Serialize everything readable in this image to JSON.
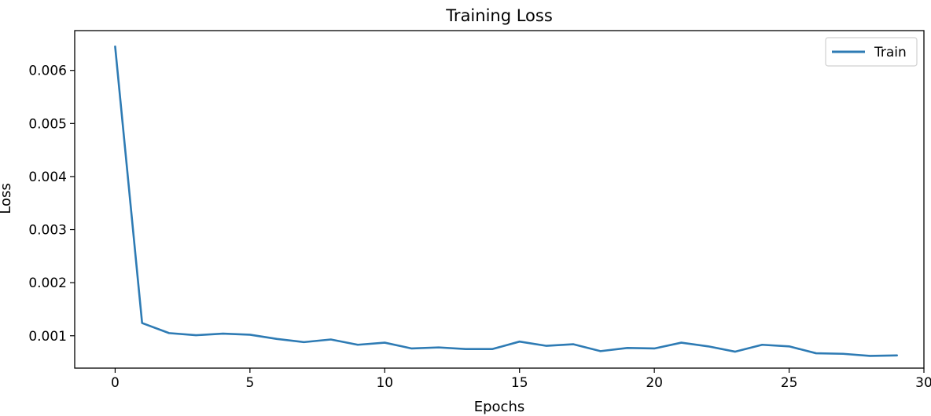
{
  "chart_data": {
    "type": "line",
    "title": "Training Loss",
    "xlabel": "Epochs",
    "ylabel": "Loss",
    "xlim": [
      -1.5,
      30
    ],
    "ylim": [
      0.00039,
      0.00675
    ],
    "xticks": [
      0,
      5,
      10,
      15,
      20,
      25,
      30
    ],
    "xtick_labels": [
      "0",
      "5",
      "10",
      "15",
      "20",
      "25",
      "30"
    ],
    "yticks": [
      0.001,
      0.002,
      0.003,
      0.004,
      0.005,
      0.006
    ],
    "ytick_labels": [
      "0.001",
      "0.002",
      "0.003",
      "0.004",
      "0.005",
      "0.006"
    ],
    "grid": false,
    "legend_position": "top-right",
    "series": [
      {
        "name": "Train",
        "color": "#2e7bb4",
        "x": [
          0,
          1,
          2,
          3,
          4,
          5,
          6,
          7,
          8,
          9,
          10,
          11,
          12,
          13,
          14,
          15,
          16,
          17,
          18,
          19,
          20,
          21,
          22,
          23,
          24,
          25,
          26,
          27,
          28,
          29
        ],
        "y": [
          0.00645,
          0.00124,
          0.00105,
          0.00101,
          0.00104,
          0.00102,
          0.00094,
          0.00088,
          0.00093,
          0.00083,
          0.00087,
          0.00076,
          0.00078,
          0.00075,
          0.00075,
          0.00089,
          0.00081,
          0.00084,
          0.00071,
          0.00077,
          0.00076,
          0.00087,
          0.0008,
          0.0007,
          0.00083,
          0.0008,
          0.00067,
          0.00066,
          0.00062,
          0.00063
        ]
      }
    ]
  }
}
